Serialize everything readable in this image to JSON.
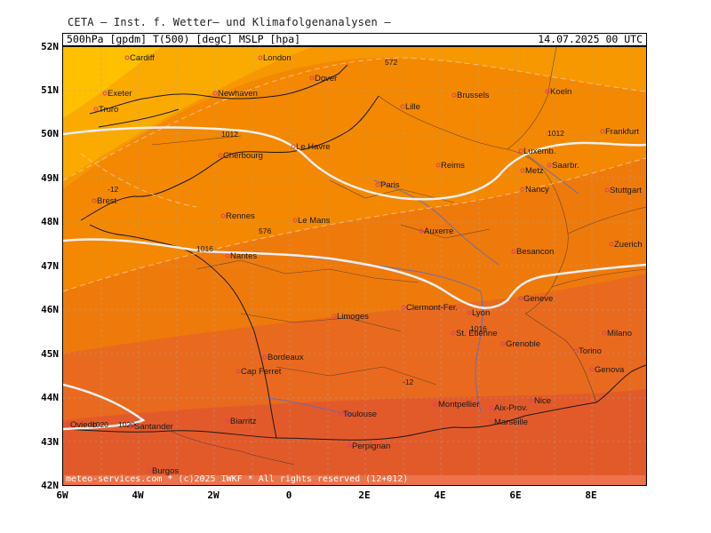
{
  "header": {
    "title": "CETA – Inst. f. Wetter– und Klimafolgenanalysen –",
    "params": "500hPa [gpdm] T(500) [degC] MSLP [hpa]",
    "datetime": "14.07.2025 00 UTC"
  },
  "axes": {
    "lat_labels": [
      "52N",
      "51N",
      "50N",
      "49N",
      "48N",
      "47N",
      "46N",
      "45N",
      "44N",
      "43N",
      "42N"
    ],
    "lon_labels": [
      "6W",
      "4W",
      "2W",
      "0",
      "2E",
      "4E",
      "6E",
      "8E"
    ]
  },
  "footer": "meteo-services.com * (c)2025 IWKF * All rights reserved (12+012)",
  "colors": {
    "shade_lightest": "#ffc000",
    "shade_1": "#fbaa00",
    "shade_2": "#f79800",
    "shade_3": "#f48800",
    "shade_4": "#ef7a0c",
    "shade_5": "#e96a1e",
    "shade_6": "#e35a2a",
    "isobar": "#f0f0f0",
    "city_marker": "#e0405a",
    "coastline": "#1a1a1a",
    "river": "#5a68c8"
  },
  "isobars": [
    "1012",
    "1012",
    "1016",
    "1016",
    "1020",
    "1020"
  ],
  "geopotential_labels": [
    "572",
    "576"
  ],
  "temperature_labels": [
    "-12",
    "-12"
  ],
  "cities": [
    "Cardiff",
    "London",
    "Dover",
    "Exeter",
    "Newhaven",
    "Truro",
    "Brussels",
    "Lille",
    "Koeln",
    "Frankfurt",
    "Le Havre",
    "Cherbourg",
    "Reims",
    "Luxemb.",
    "Metz",
    "Saarbr.",
    "Brest",
    "Paris",
    "Nancy",
    "Stuttgart",
    "Rennes",
    "Le Mans",
    "Auxerre",
    "Nantes",
    "Besancon",
    "Zuerich",
    "Geneve",
    "Limoges",
    "Clermont-Fer.",
    "Lyon",
    "St. Etienne",
    "Grenoble",
    "Milano",
    "Bordeaux",
    "Torino",
    "Cap Ferret",
    "Genova",
    "Toulouse",
    "Montpellier",
    "Nice",
    "Aix-Prov.",
    "Biarritz",
    "Marseille",
    "Oviedo",
    "Santander",
    "Perpignan",
    "Burgos"
  ]
}
